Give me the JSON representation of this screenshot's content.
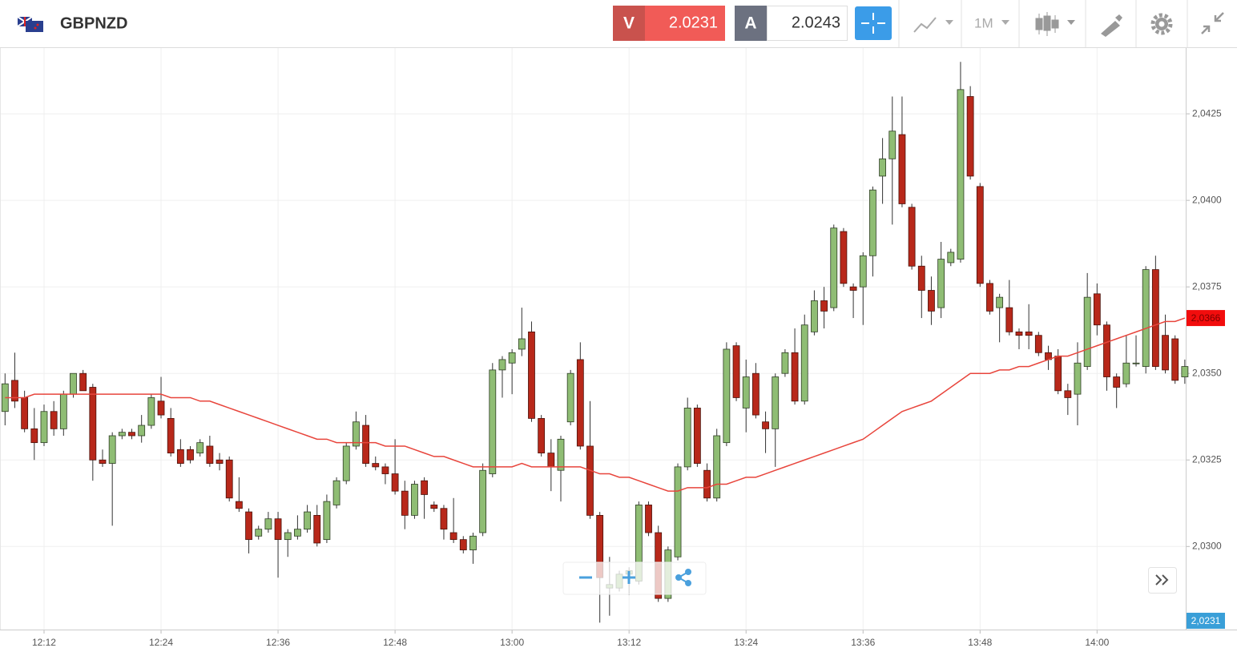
{
  "toolbar": {
    "symbol": "GBPNZD",
    "sell": {
      "label": "V",
      "price": 2.0231
    },
    "buy": {
      "label": "A",
      "price": 2.0243
    },
    "timeframe": "1M"
  },
  "chart_data": {
    "type": "candlestick",
    "x": [
      "12:08",
      "12:09",
      "12:10",
      "12:11",
      "12:12",
      "12:13",
      "12:14",
      "12:15",
      "12:16",
      "12:17",
      "12:18",
      "12:19",
      "12:20",
      "12:21",
      "12:22",
      "12:23",
      "12:24",
      "12:25",
      "12:26",
      "12:27",
      "12:28",
      "12:29",
      "12:30",
      "12:31",
      "12:32",
      "12:33",
      "12:34",
      "12:35",
      "12:36",
      "12:37",
      "12:38",
      "12:39",
      "12:40",
      "12:41",
      "12:42",
      "12:43",
      "12:44",
      "12:45",
      "12:46",
      "12:47",
      "12:48",
      "12:49",
      "12:50",
      "12:51",
      "12:52",
      "12:53",
      "12:54",
      "12:55",
      "12:56",
      "12:57",
      "12:58",
      "12:59",
      "13:00",
      "13:01",
      "13:02",
      "13:03",
      "13:04",
      "13:05",
      "13:06",
      "13:07",
      "13:08",
      "13:09",
      "13:10",
      "13:11",
      "13:12",
      "13:13",
      "13:14",
      "13:15",
      "13:16",
      "13:17",
      "13:18",
      "13:19",
      "13:20",
      "13:21",
      "13:22",
      "13:23",
      "13:24",
      "13:25",
      "13:26",
      "13:27",
      "13:28",
      "13:29",
      "13:30",
      "13:31",
      "13:32",
      "13:33",
      "13:34",
      "13:35",
      "13:36",
      "13:37",
      "13:38",
      "13:39",
      "13:40",
      "13:41",
      "13:42",
      "13:43",
      "13:44",
      "13:45",
      "13:46",
      "13:47",
      "13:48",
      "13:49",
      "13:50",
      "13:51",
      "13:52",
      "13:53",
      "13:54",
      "13:55",
      "13:56",
      "13:57",
      "13:58",
      "13:59",
      "14:00",
      "14:01",
      "14:02",
      "14:03",
      "14:04",
      "14:05",
      "14:06",
      "14:07",
      "14:08",
      "14:09"
    ],
    "open": [
      2.0339,
      2.0348,
      2.0343,
      2.0334,
      2.033,
      2.0339,
      2.0334,
      2.0344,
      2.035,
      2.0346,
      2.0325,
      2.0324,
      2.0332,
      2.0333,
      2.0332,
      2.0335,
      2.0342,
      2.0337,
      2.0328,
      2.0328,
      2.0327,
      2.0329,
      2.0325,
      2.0325,
      2.0313,
      2.031,
      2.0303,
      2.0305,
      2.0308,
      2.0302,
      2.0303,
      2.0305,
      2.0309,
      2.0302,
      2.0312,
      2.0319,
      2.0329,
      2.0335,
      2.0324,
      2.0323,
      2.0321,
      2.0316,
      2.0309,
      2.0319,
      2.0312,
      2.0311,
      2.0304,
      2.0302,
      2.0299,
      2.0304,
      2.0321,
      2.0351,
      2.0353,
      2.0357,
      2.0362,
      2.0337,
      2.0327,
      2.0322,
      2.0336,
      2.0354,
      2.0329,
      2.0309,
      2.0288,
      2.0288,
      2.0292,
      2.029,
      2.0312,
      2.0304,
      2.0285,
      2.0297,
      2.0323,
      2.034,
      2.0322,
      2.0314,
      2.033,
      2.0358,
      2.034,
      2.035,
      2.0336,
      2.0334,
      2.035,
      2.0356,
      2.0342,
      2.0362,
      2.0371,
      2.0369,
      2.0391,
      2.0375,
      2.0375,
      2.0384,
      2.0407,
      2.0412,
      2.0419,
      2.0398,
      2.0381,
      2.0374,
      2.0369,
      2.0382,
      2.0383,
      2.043,
      2.0404,
      2.0376,
      2.0369,
      2.0369,
      2.0362,
      2.0362,
      2.0361,
      2.0356,
      2.0355,
      2.0345,
      2.0344,
      2.0352,
      2.0373,
      2.0364,
      2.0349,
      2.0347,
      2.0353,
      2.0352,
      2.038,
      2.0361,
      2.036,
      2.0349
    ],
    "high": [
      2.035,
      2.0356,
      2.0345,
      2.034,
      2.0341,
      2.0342,
      2.0345,
      2.035,
      2.0351,
      2.0347,
      2.0328,
      2.0333,
      2.0334,
      2.0334,
      2.0338,
      2.0344,
      2.0349,
      2.034,
      2.0331,
      2.0329,
      2.0331,
      2.0332,
      2.0327,
      2.0326,
      2.032,
      2.0311,
      2.0306,
      2.031,
      2.031,
      2.0305,
      2.0309,
      2.0312,
      2.0312,
      2.0315,
      2.032,
      2.033,
      2.0339,
      2.0338,
      2.0326,
      2.0324,
      2.0331,
      2.0319,
      2.0319,
      2.032,
      2.0313,
      2.0312,
      2.0314,
      2.0303,
      2.0304,
      2.0324,
      2.0353,
      2.0355,
      2.0357,
      2.0369,
      2.0365,
      2.0338,
      2.0331,
      2.0332,
      2.0351,
      2.0359,
      2.0342,
      2.031,
      2.0297,
      2.0293,
      2.0294,
      2.0313,
      2.0313,
      2.0306,
      2.03,
      2.0324,
      2.0343,
      2.0341,
      2.0324,
      2.0334,
      2.0359,
      2.0359,
      2.0354,
      2.0353,
      2.0339,
      2.035,
      2.0357,
      2.0363,
      2.0367,
      2.0374,
      2.0375,
      2.0393,
      2.0392,
      2.0376,
      2.0385,
      2.0404,
      2.0418,
      2.043,
      2.043,
      2.0399,
      2.0384,
      2.0378,
      2.0388,
      2.0386,
      2.044,
      2.0433,
      2.0405,
      2.0377,
      2.0373,
      2.0377,
      2.0363,
      2.037,
      2.0362,
      2.0358,
      2.0357,
      2.0347,
      2.0359,
      2.0379,
      2.0376,
      2.0365,
      2.035,
      2.0361,
      2.0361,
      2.0381,
      2.0384,
      2.0367,
      2.0361,
      2.0354
    ],
    "low": [
      2.0335,
      2.034,
      2.0333,
      2.0325,
      2.0329,
      2.0332,
      2.0332,
      2.0343,
      2.0345,
      2.0319,
      2.0323,
      2.0306,
      2.0331,
      2.0331,
      2.033,
      2.0334,
      2.0337,
      2.0326,
      2.0323,
      2.0324,
      2.0326,
      2.0323,
      2.0322,
      2.0313,
      2.031,
      2.0298,
      2.0302,
      2.0304,
      2.0291,
      2.0297,
      2.0302,
      2.0304,
      2.03,
      2.0301,
      2.0311,
      2.0318,
      2.0328,
      2.0323,
      2.0322,
      2.0318,
      2.0315,
      2.0305,
      2.0308,
      2.0308,
      2.031,
      2.0302,
      2.0301,
      2.0298,
      2.0295,
      2.0303,
      2.032,
      2.0343,
      2.0344,
      2.0355,
      2.0336,
      2.0326,
      2.0316,
      2.0313,
      2.0335,
      2.0328,
      2.0308,
      2.0278,
      2.028,
      2.0287,
      2.0286,
      2.0289,
      2.0303,
      2.0284,
      2.0284,
      2.0296,
      2.0322,
      2.0323,
      2.0313,
      2.0313,
      2.0329,
      2.0342,
      2.0333,
      2.0337,
      2.0327,
      2.0323,
      2.0349,
      2.0341,
      2.0341,
      2.0361,
      2.0363,
      2.0368,
      2.0375,
      2.0366,
      2.0364,
      2.0378,
      2.0399,
      2.0393,
      2.0398,
      2.038,
      2.0366,
      2.0364,
      2.0366,
      2.0381,
      2.0382,
      2.0406,
      2.0375,
      2.0367,
      2.0359,
      2.0361,
      2.0357,
      2.0357,
      2.0355,
      2.0351,
      2.0344,
      2.0338,
      2.0335,
      2.0351,
      2.0361,
      2.0345,
      2.034,
      2.0346,
      2.0352,
      2.035,
      2.0351,
      2.035,
      2.0347,
      2.0347
    ],
    "close": [
      2.0347,
      2.0342,
      2.0334,
      2.033,
      2.0339,
      2.0334,
      2.0344,
      2.035,
      2.0345,
      2.0325,
      2.0324,
      2.0332,
      2.0333,
      2.0332,
      2.0335,
      2.0343,
      2.0338,
      2.0327,
      2.0324,
      2.0325,
      2.033,
      2.0324,
      2.0324,
      2.0314,
      2.0311,
      2.0302,
      2.0305,
      2.0308,
      2.0302,
      2.0304,
      2.0305,
      2.031,
      2.0301,
      2.0313,
      2.0319,
      2.0329,
      2.0336,
      2.0324,
      2.0323,
      2.0321,
      2.0316,
      2.0309,
      2.0318,
      2.0315,
      2.0311,
      2.0305,
      2.0302,
      2.0299,
      2.0303,
      2.0322,
      2.0351,
      2.0354,
      2.0356,
      2.036,
      2.0337,
      2.0327,
      2.0323,
      2.0331,
      2.035,
      2.0329,
      2.0309,
      2.0291,
      2.0289,
      2.0292,
      2.0293,
      2.0312,
      2.0304,
      2.0285,
      2.0299,
      2.0323,
      2.034,
      2.0324,
      2.0314,
      2.0332,
      2.0357,
      2.0343,
      2.0349,
      2.0338,
      2.0334,
      2.0349,
      2.0356,
      2.0342,
      2.0364,
      2.0371,
      2.0368,
      2.0392,
      2.0376,
      2.0374,
      2.0384,
      2.0403,
      2.0412,
      2.042,
      2.0399,
      2.0381,
      2.0374,
      2.0368,
      2.0383,
      2.0385,
      2.0432,
      2.0407,
      2.0376,
      2.0368,
      2.0372,
      2.0362,
      2.0361,
      2.0361,
      2.0356,
      2.0354,
      2.0345,
      2.0343,
      2.0353,
      2.0372,
      2.0364,
      2.0349,
      2.0346,
      2.0353,
      2.0353,
      2.038,
      2.0352,
      2.0351,
      2.0348,
      2.0352
    ],
    "up_color": "#8fbd74",
    "down_color": "#b8281a",
    "overlay": {
      "color": "#e8453c",
      "values": [
        2.0343,
        2.0343,
        2.0343,
        2.0344,
        2.0344,
        2.0344,
        2.0344,
        2.0344,
        2.0344,
        2.0344,
        2.0344,
        2.0344,
        2.0344,
        2.0344,
        2.0344,
        2.0344,
        2.0344,
        2.0343,
        2.0343,
        2.0343,
        2.0342,
        2.0342,
        2.0341,
        2.034,
        2.0339,
        2.0338,
        2.0337,
        2.0336,
        2.0335,
        2.0334,
        2.0333,
        2.0332,
        2.0331,
        2.0331,
        2.033,
        2.033,
        2.033,
        2.033,
        2.033,
        2.0329,
        2.0329,
        2.0329,
        2.0328,
        2.0327,
        2.0326,
        2.0326,
        2.0325,
        2.0324,
        2.0323,
        2.0323,
        2.0323,
        2.0323,
        2.0323,
        2.0324,
        2.0323,
        2.0323,
        2.0323,
        2.0323,
        2.0323,
        2.0323,
        2.0322,
        2.0321,
        2.0321,
        2.032,
        2.032,
        2.0319,
        2.0318,
        2.0317,
        2.0316,
        2.0316,
        2.0317,
        2.0317,
        2.0317,
        2.0318,
        2.0318,
        2.0319,
        2.032,
        2.032,
        2.0321,
        2.0322,
        2.0323,
        2.0324,
        2.0325,
        2.0326,
        2.0327,
        2.0328,
        2.0329,
        2.033,
        2.0331,
        2.0333,
        2.0335,
        2.0337,
        2.0339,
        2.034,
        2.0341,
        2.0342,
        2.0344,
        2.0346,
        2.0348,
        2.035,
        2.035,
        2.035,
        2.0351,
        2.0351,
        2.0352,
        2.0352,
        2.0353,
        2.0354,
        2.0355,
        2.0355,
        2.0356,
        2.0357,
        2.0358,
        2.0359,
        2.036,
        2.0361,
        2.0362,
        2.0363,
        2.0364,
        2.0365,
        2.0365,
        2.0366
      ]
    },
    "overlay_label": {
      "value": 2.0366,
      "label": "2,0366"
    },
    "bid_label": {
      "value": 2.0231,
      "label": "2,0231"
    },
    "ylim": [
      2.0276,
      2.0444
    ],
    "yticks": [
      {
        "value": 2.03,
        "label": "2,0300"
      },
      {
        "value": 2.0325,
        "label": "2,0325"
      },
      {
        "value": 2.035,
        "label": "2,0350"
      },
      {
        "value": 2.0375,
        "label": "2,0375"
      },
      {
        "value": 2.04,
        "label": "2,0400"
      },
      {
        "value": 2.0425,
        "label": "2,0425"
      }
    ],
    "xticks": [
      "12:12",
      "12:24",
      "12:36",
      "12:48",
      "13:00",
      "13:12",
      "13:24",
      "13:36",
      "13:48",
      "14:00"
    ],
    "grid": true
  }
}
